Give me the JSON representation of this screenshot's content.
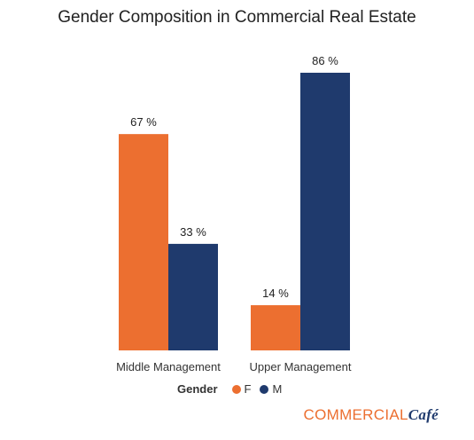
{
  "chart_data": {
    "type": "bar",
    "title": "Gender Composition in Commercial Real Estate",
    "categories": [
      "Middle Management",
      "Upper Management"
    ],
    "series": [
      {
        "name": "F",
        "values": [
          67,
          14
        ],
        "labels": [
          "67 %",
          "14 %"
        ]
      },
      {
        "name": "M",
        "values": [
          33,
          86
        ],
        "labels": [
          "33 %",
          "86 %"
        ]
      }
    ],
    "ylim": [
      0,
      100
    ],
    "grid": false,
    "legend": {
      "title": "Gender",
      "placement": "bottom"
    },
    "colors": {
      "F": "#ec6f30",
      "M": "#1f3a6d"
    }
  },
  "logo": {
    "main": "COMMERCIAL",
    "sub": "Café"
  }
}
